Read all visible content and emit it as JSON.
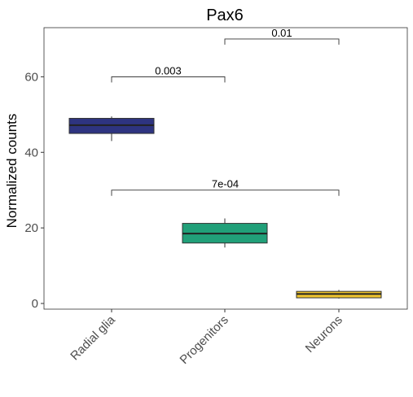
{
  "chart_data": {
    "type": "box",
    "title": "Pax6",
    "xlabel": "",
    "ylabel": "Normalized counts",
    "ylim": [
      -1.5,
      73
    ],
    "yticks": [
      0,
      20,
      40,
      60
    ],
    "grid": false,
    "legend": "none",
    "categories": [
      "Radial glia",
      "Progenitors",
      "Neurons"
    ],
    "boxes": [
      {
        "category": "Radial glia",
        "min": 43.0,
        "q1": 45.0,
        "median": 47.2,
        "q3": 49.0,
        "max": 49.5,
        "color": "#2e3480"
      },
      {
        "category": "Progenitors",
        "min": 14.8,
        "q1": 16.0,
        "median": 18.5,
        "q3": 21.2,
        "max": 22.5,
        "color": "#21a079"
      },
      {
        "category": "Neurons",
        "min": 1.3,
        "q1": 1.5,
        "median": 2.5,
        "q3": 3.2,
        "max": 3.6,
        "color": "#f0c52e"
      }
    ],
    "comparisons": [
      {
        "from": 0,
        "to": 1,
        "y": 60,
        "label": "0.003"
      },
      {
        "from": 1,
        "to": 2,
        "y": 70,
        "label": "0.01"
      },
      {
        "from": 0,
        "to": 2,
        "y": 30,
        "label": "7e-04"
      }
    ]
  }
}
